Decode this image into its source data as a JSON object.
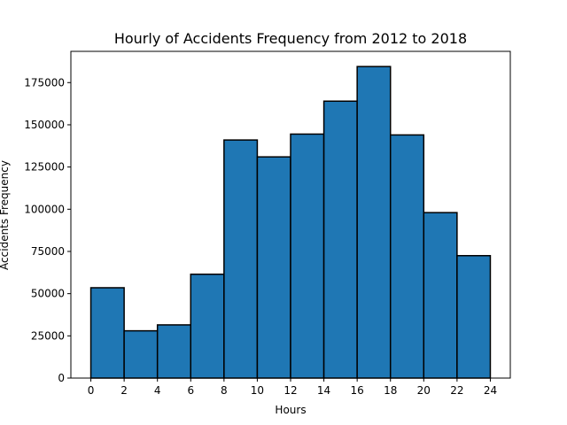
{
  "chart_data": {
    "type": "bar",
    "title": "Hourly of Accidents Frequency from 2012 to 2018",
    "xlabel": "Hours",
    "ylabel": "Accidents Frequency",
    "bin_edges": [
      0,
      2,
      4,
      6,
      8,
      10,
      12,
      14,
      16,
      18,
      20,
      22,
      24
    ],
    "values": [
      53500,
      28000,
      31500,
      61500,
      141000,
      131000,
      144500,
      164000,
      184500,
      144000,
      98000,
      72500
    ],
    "xlim": [
      -1.2,
      25.2
    ],
    "ylim": [
      0,
      193500
    ],
    "x_ticks": [
      "0",
      "2",
      "4",
      "6",
      "8",
      "10",
      "12",
      "14",
      "16",
      "18",
      "20",
      "22",
      "24"
    ],
    "y_ticks": [
      "0",
      "25000",
      "50000",
      "75000",
      "100000",
      "125000",
      "150000",
      "175000"
    ],
    "bar_color": "#1f77b4",
    "edge_color": "#000000",
    "grid": false,
    "legend": "none"
  }
}
